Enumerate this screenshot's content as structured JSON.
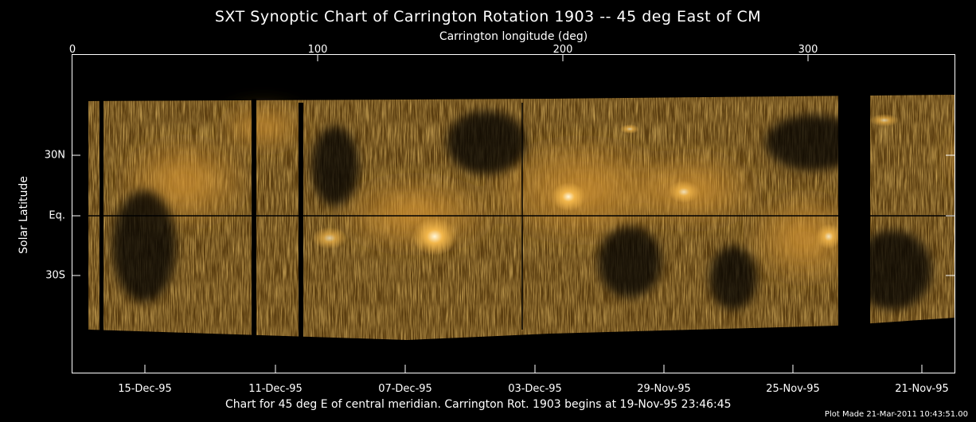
{
  "title": "SXT Synoptic Chart of Carrington Rotation 1903 -- 45 deg East of CM",
  "top_axis": {
    "label": "Carrington longitude (deg)",
    "ticks": [
      "0",
      "100",
      "200",
      "300"
    ]
  },
  "left_axis": {
    "label": "Solar Latitude",
    "ticks": [
      "30N",
      "Eq.",
      "30S"
    ]
  },
  "bottom_axis": {
    "ticks": [
      "15-Dec-95",
      "11-Dec-95",
      "07-Dec-95",
      "03-Dec-95",
      "29-Nov-95",
      "25-Nov-95",
      "21-Nov-95"
    ]
  },
  "caption": "Chart for 45 deg E of central meridian.  Carrington Rot. 1903 begins at 19-Nov-95 23:46:45",
  "plot_made": "Plot Made 21-Mar-2011 10:43:51.00",
  "colors": {
    "background": "#000000",
    "text": "#ffffff",
    "emission": "#c98a2e",
    "bright_region": "#fff0c0"
  }
}
